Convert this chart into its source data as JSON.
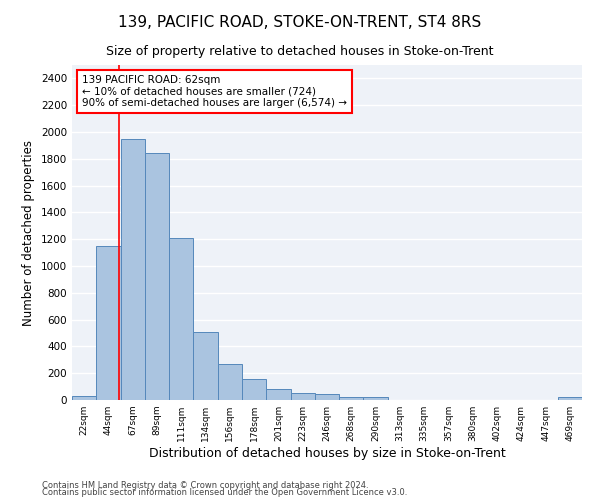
{
  "title": "139, PACIFIC ROAD, STOKE-ON-TRENT, ST4 8RS",
  "subtitle": "Size of property relative to detached houses in Stoke-on-Trent",
  "xlabel": "Distribution of detached houses by size in Stoke-on-Trent",
  "ylabel": "Number of detached properties",
  "categories": [
    "22sqm",
    "44sqm",
    "67sqm",
    "89sqm",
    "111sqm",
    "134sqm",
    "156sqm",
    "178sqm",
    "201sqm",
    "223sqm",
    "246sqm",
    "268sqm",
    "290sqm",
    "313sqm",
    "335sqm",
    "357sqm",
    "380sqm",
    "402sqm",
    "424sqm",
    "447sqm",
    "469sqm"
  ],
  "values": [
    30,
    1150,
    1950,
    1840,
    1210,
    510,
    265,
    155,
    80,
    50,
    45,
    20,
    20,
    0,
    0,
    0,
    0,
    0,
    0,
    0,
    20
  ],
  "bar_color": "#aac4e0",
  "bar_edge_color": "#5588bb",
  "vline_x": 1.45,
  "vline_color": "red",
  "annotation_text": "139 PACIFIC ROAD: 62sqm\n← 10% of detached houses are smaller (724)\n90% of semi-detached houses are larger (6,574) →",
  "annotation_box_color": "white",
  "annotation_box_edge_color": "red",
  "ylim": [
    0,
    2500
  ],
  "yticks": [
    0,
    200,
    400,
    600,
    800,
    1000,
    1200,
    1400,
    1600,
    1800,
    2000,
    2200,
    2400
  ],
  "background_color": "#eef2f8",
  "grid_color": "white",
  "footer1": "Contains HM Land Registry data © Crown copyright and database right 2024.",
  "footer2": "Contains public sector information licensed under the Open Government Licence v3.0.",
  "title_fontsize": 11,
  "subtitle_fontsize": 9,
  "xlabel_fontsize": 9,
  "ylabel_fontsize": 8.5
}
